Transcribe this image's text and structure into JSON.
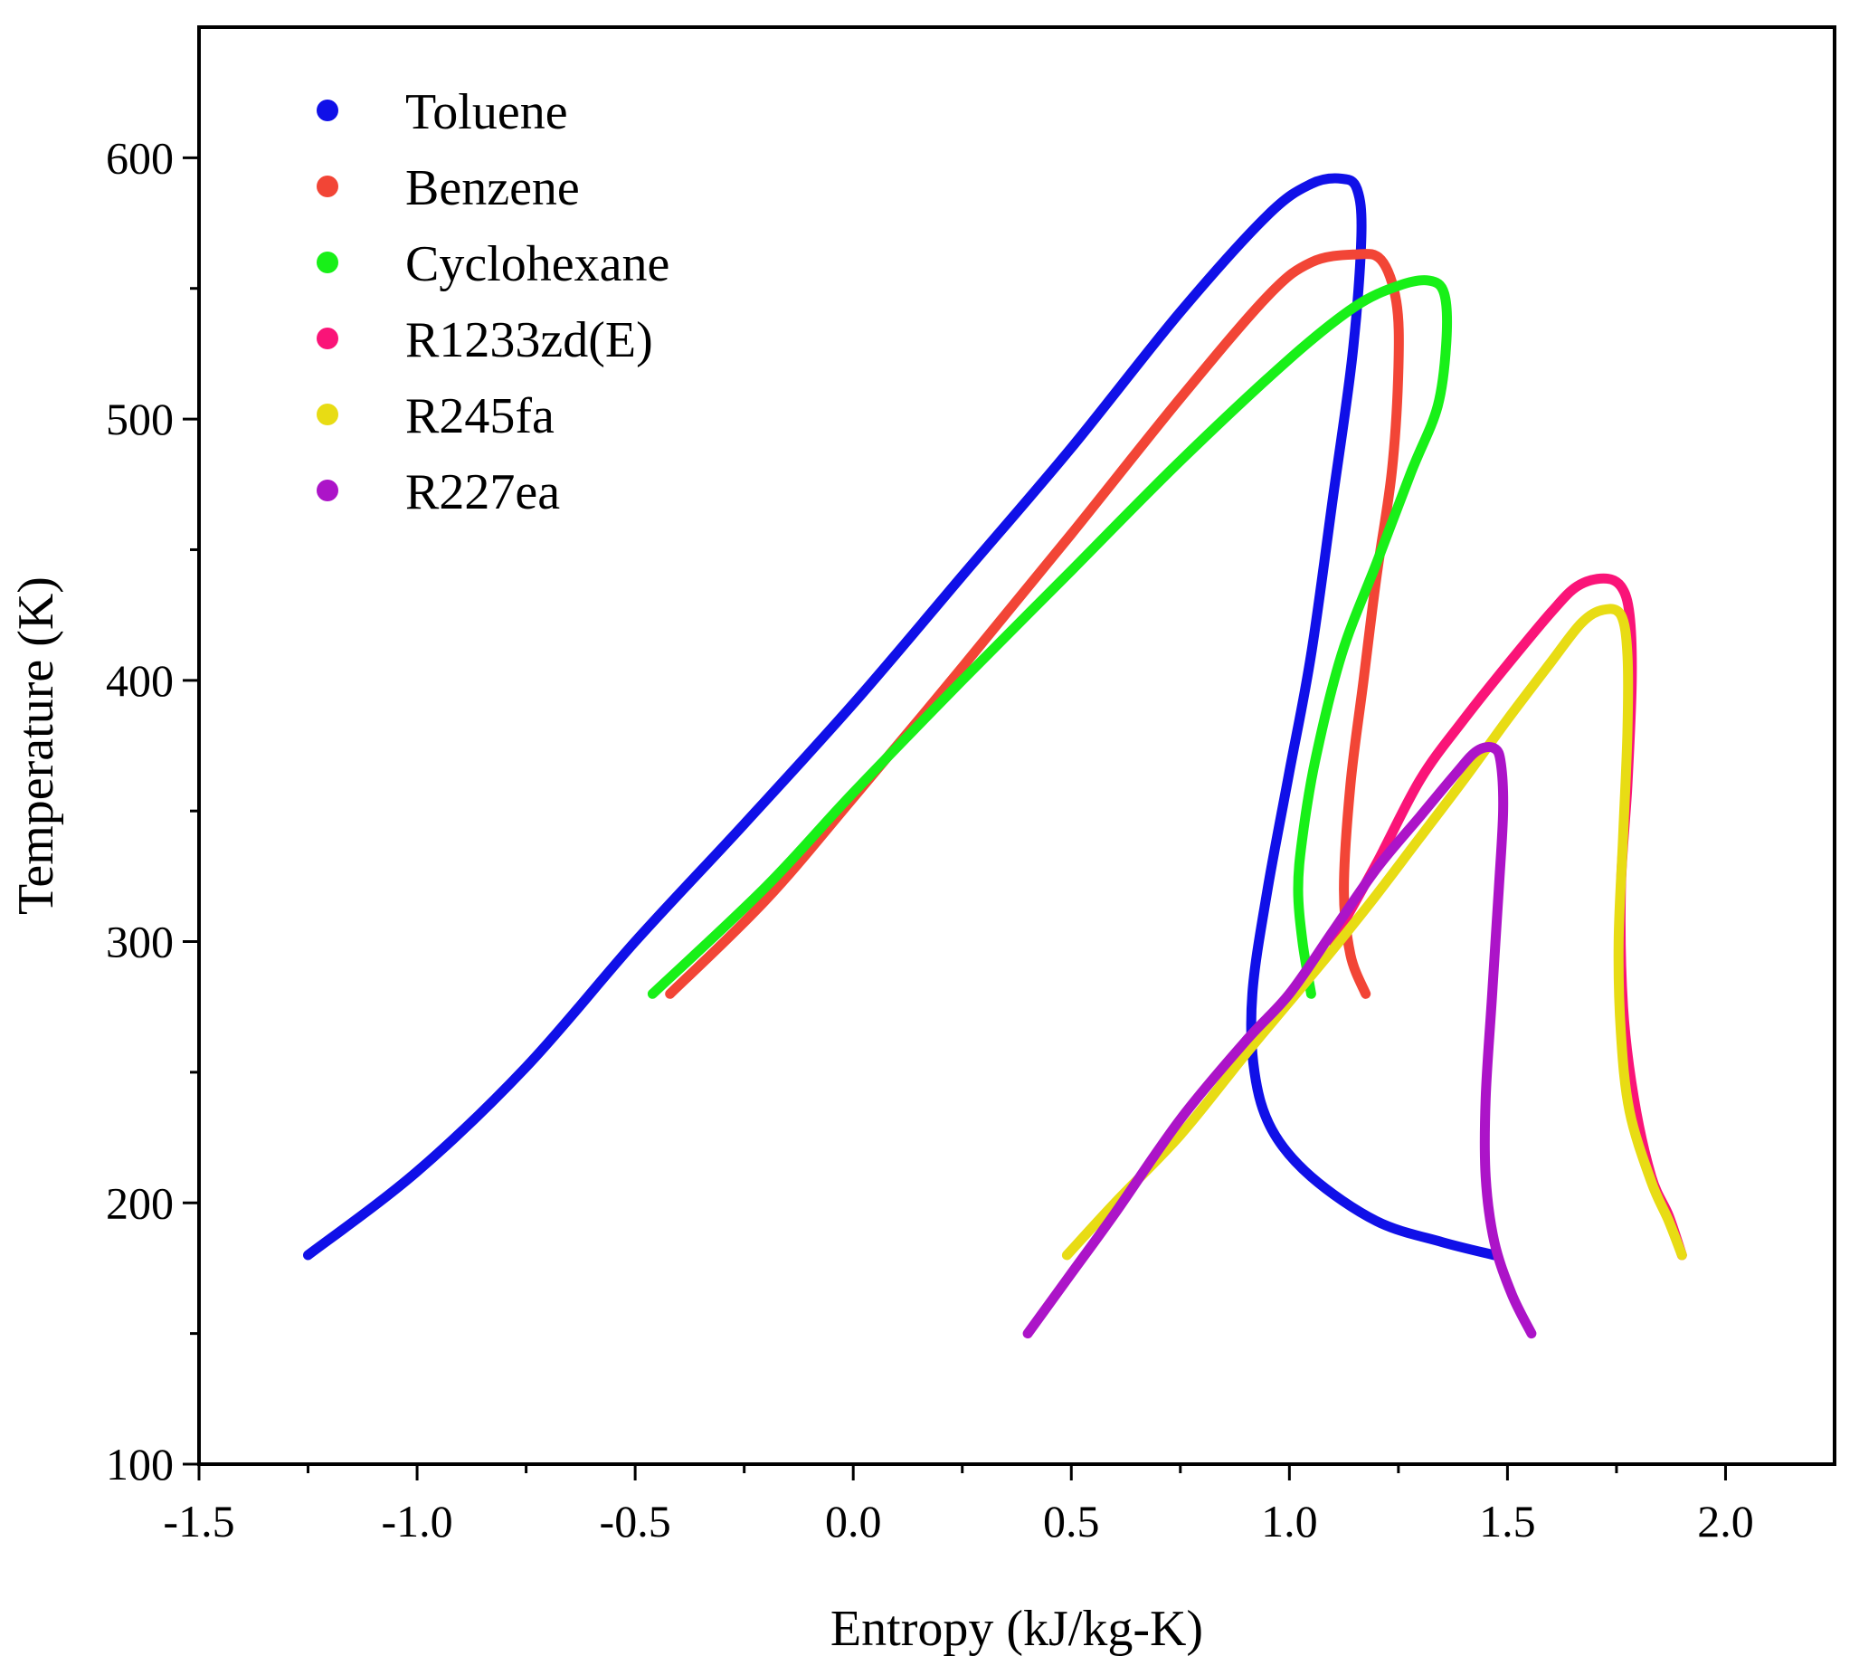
{
  "chart_data": {
    "type": "line",
    "title": "",
    "xlabel": "Entropy (kJ/kg-K)",
    "ylabel": "Temperature (K)",
    "xlim": [
      -1.5,
      2.25
    ],
    "ylim": [
      100,
      650
    ],
    "x_ticks": [
      -1.5,
      -1.0,
      -0.5,
      0.0,
      0.5,
      1.0,
      1.5,
      2.0
    ],
    "x_tick_labels": [
      "-1.5",
      "-1.0",
      "-0.5",
      "0.0",
      "0.5",
      "1.0",
      "1.5",
      "2.0"
    ],
    "y_ticks": [
      100,
      200,
      300,
      400,
      500,
      600
    ],
    "y_tick_labels": [
      "100",
      "200",
      "300",
      "400",
      "500",
      "600"
    ],
    "grid": false,
    "legend_position": "top-left",
    "series": [
      {
        "name": "Toluene",
        "color": "#1010e8",
        "points": [
          [
            -1.25,
            180
          ],
          [
            -1.0,
            212
          ],
          [
            -0.75,
            252
          ],
          [
            -0.5,
            300
          ],
          [
            -0.25,
            345
          ],
          [
            0.0,
            391
          ],
          [
            0.25,
            440
          ],
          [
            0.5,
            489
          ],
          [
            0.75,
            541
          ],
          [
            0.95,
            578
          ],
          [
            1.05,
            590
          ],
          [
            1.12,
            592
          ],
          [
            1.155,
            588
          ],
          [
            1.165,
            570
          ],
          [
            1.145,
            525
          ],
          [
            1.1,
            470
          ],
          [
            1.05,
            410
          ],
          [
            1.0,
            365
          ],
          [
            0.95,
            320
          ],
          [
            0.915,
            280
          ],
          [
            0.92,
            250
          ],
          [
            0.96,
            228
          ],
          [
            1.05,
            210
          ],
          [
            1.2,
            193
          ],
          [
            1.35,
            185
          ],
          [
            1.47,
            180
          ]
        ]
      },
      {
        "name": "Benzene",
        "color": "#f24536",
        "points": [
          [
            -0.42,
            280
          ],
          [
            -0.2,
            316
          ],
          [
            0.0,
            355
          ],
          [
            0.25,
            405
          ],
          [
            0.5,
            456
          ],
          [
            0.75,
            508
          ],
          [
            0.95,
            547
          ],
          [
            1.05,
            560
          ],
          [
            1.15,
            563
          ],
          [
            1.21,
            561
          ],
          [
            1.245,
            545
          ],
          [
            1.25,
            520
          ],
          [
            1.235,
            480
          ],
          [
            1.2,
            440
          ],
          [
            1.17,
            400
          ],
          [
            1.14,
            360
          ],
          [
            1.125,
            320
          ],
          [
            1.14,
            295
          ],
          [
            1.175,
            280
          ]
        ]
      },
      {
        "name": "Cyclohexane",
        "color": "#18f018",
        "points": [
          [
            -0.46,
            280
          ],
          [
            -0.2,
            321
          ],
          [
            0.0,
            357
          ],
          [
            0.25,
            400
          ],
          [
            0.5,
            442
          ],
          [
            0.75,
            484
          ],
          [
            1.0,
            523
          ],
          [
            1.15,
            543
          ],
          [
            1.25,
            551
          ],
          [
            1.32,
            553
          ],
          [
            1.355,
            548
          ],
          [
            1.36,
            530
          ],
          [
            1.34,
            505
          ],
          [
            1.28,
            480
          ],
          [
            1.2,
            445
          ],
          [
            1.12,
            410
          ],
          [
            1.06,
            370
          ],
          [
            1.03,
            340
          ],
          [
            1.02,
            320
          ],
          [
            1.03,
            300
          ],
          [
            1.05,
            280
          ]
        ]
      },
      {
        "name": "R1233zd(E)",
        "color": "#fa1478",
        "points": [
          [
            1.1,
            300
          ],
          [
            1.2,
            330
          ],
          [
            1.3,
            362
          ],
          [
            1.4,
            385
          ],
          [
            1.5,
            406
          ],
          [
            1.6,
            426
          ],
          [
            1.66,
            436
          ],
          [
            1.72,
            439
          ],
          [
            1.76,
            436
          ],
          [
            1.78,
            425
          ],
          [
            1.785,
            400
          ],
          [
            1.775,
            360
          ],
          [
            1.76,
            320
          ],
          [
            1.765,
            275
          ],
          [
            1.79,
            240
          ],
          [
            1.83,
            210
          ],
          [
            1.87,
            195
          ],
          [
            1.9,
            180
          ]
        ]
      },
      {
        "name": "R245fa",
        "color": "#e8dc14",
        "points": [
          [
            0.49,
            180
          ],
          [
            0.6,
            200
          ],
          [
            0.75,
            226
          ],
          [
            0.9,
            257
          ],
          [
            1.0,
            277
          ],
          [
            1.1,
            297
          ],
          [
            1.2,
            318
          ],
          [
            1.3,
            340
          ],
          [
            1.4,
            362
          ],
          [
            1.5,
            385
          ],
          [
            1.6,
            407
          ],
          [
            1.67,
            422
          ],
          [
            1.72,
            427
          ],
          [
            1.76,
            425
          ],
          [
            1.775,
            410
          ],
          [
            1.775,
            380
          ],
          [
            1.765,
            340
          ],
          [
            1.755,
            300
          ],
          [
            1.76,
            265
          ],
          [
            1.78,
            235
          ],
          [
            1.83,
            208
          ],
          [
            1.87,
            193
          ],
          [
            1.9,
            180
          ]
        ]
      },
      {
        "name": "R227ea",
        "color": "#ac14c8",
        "points": [
          [
            0.4,
            150
          ],
          [
            0.5,
            173
          ],
          [
            0.6,
            196
          ],
          [
            0.75,
            232
          ],
          [
            0.9,
            262
          ],
          [
            1.0,
            280
          ],
          [
            1.1,
            304
          ],
          [
            1.2,
            328
          ],
          [
            1.3,
            348
          ],
          [
            1.38,
            364
          ],
          [
            1.43,
            373
          ],
          [
            1.47,
            374
          ],
          [
            1.485,
            368
          ],
          [
            1.49,
            350
          ],
          [
            1.48,
            320
          ],
          [
            1.465,
            280
          ],
          [
            1.45,
            240
          ],
          [
            1.45,
            210
          ],
          [
            1.47,
            185
          ],
          [
            1.51,
            165
          ],
          [
            1.555,
            150
          ]
        ]
      }
    ]
  }
}
